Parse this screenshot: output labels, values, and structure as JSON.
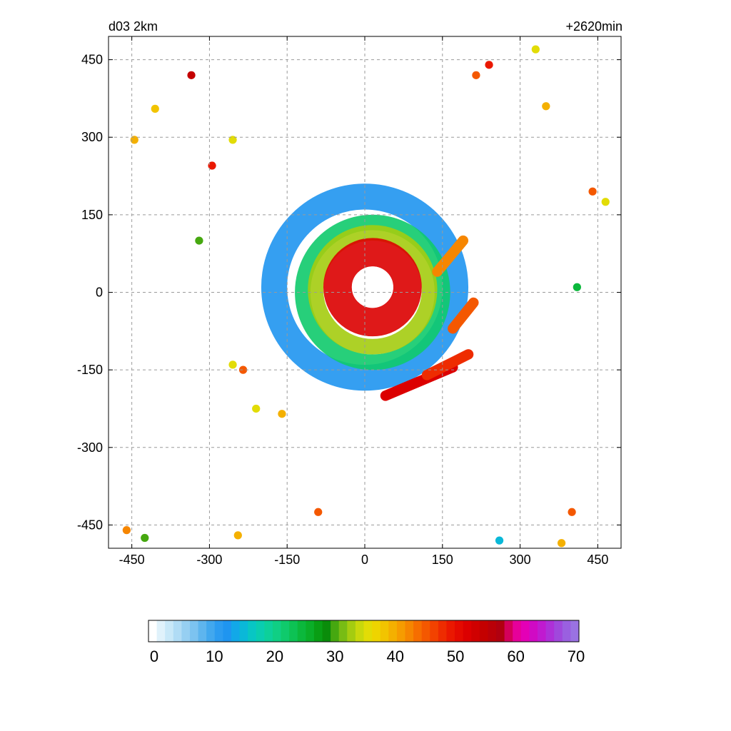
{
  "chart_data": {
    "type": "heatmap",
    "title_left": "d03 2km",
    "title_right": "+2620min",
    "xlabel": "",
    "ylabel": "",
    "xlim": [
      -495,
      495
    ],
    "ylim": [
      -495,
      495
    ],
    "x_ticks": [
      -450,
      -300,
      -150,
      0,
      150,
      300,
      450
    ],
    "y_ticks": [
      -450,
      -300,
      -150,
      0,
      150,
      300,
      450
    ],
    "grid": true,
    "colorbar": {
      "range": [
        0,
        70
      ],
      "ticks": [
        0,
        10,
        20,
        30,
        40,
        50,
        60,
        70
      ],
      "colors": [
        "#ffffff",
        "#e0f2fb",
        "#c8e8f8",
        "#b0dcf5",
        "#96cff2",
        "#7cc3f0",
        "#5eb5ee",
        "#42a8ee",
        "#2c9cf0",
        "#1f95f0",
        "#12a8e8",
        "#0ab8d8",
        "#08c6c4",
        "#0acdb0",
        "#0dd09a",
        "#10cf84",
        "#0fca6c",
        "#0dc254",
        "#0bb83c",
        "#0aae28",
        "#099e14",
        "#0a8c0a",
        "#46a810",
        "#78bc14",
        "#a4cc10",
        "#c8d80c",
        "#e2dc06",
        "#eed400",
        "#f2c400",
        "#f4b000",
        "#f69c00",
        "#f68600",
        "#f66e00",
        "#f45800",
        "#f24200",
        "#ee2c00",
        "#ea1800",
        "#e40a00",
        "#dc0000",
        "#d00000",
        "#c40000",
        "#ba0008",
        "#b00010",
        "#d4005a",
        "#e6009a",
        "#e400b6",
        "#d00ac4",
        "#c01ad0",
        "#ae30d8",
        "#a048dc",
        "#9a60e0",
        "#9a72e2"
      ]
    },
    "features": [
      {
        "type": "ring",
        "x": 15,
        "y": 10,
        "r_inner": 40,
        "r_outer": 95,
        "value": 52
      },
      {
        "type": "ring",
        "x": 15,
        "y": 5,
        "r_inner": 95,
        "r_outer": 125,
        "value": 33
      },
      {
        "type": "ring",
        "x": 15,
        "y": 0,
        "r_inner": 120,
        "r_outer": 150,
        "value": 22
      },
      {
        "type": "ring",
        "x": 0,
        "y": 10,
        "r_inner": 150,
        "r_outer": 200,
        "value": 12
      },
      {
        "type": "band",
        "x1": 40,
        "y1": -200,
        "x2": 170,
        "y2": -145,
        "value": 52
      },
      {
        "type": "band",
        "x1": 120,
        "y1": -160,
        "x2": 200,
        "y2": -120,
        "value": 48
      },
      {
        "type": "band",
        "x1": 170,
        "y1": -70,
        "x2": 210,
        "y2": -20,
        "value": 45
      },
      {
        "type": "band",
        "x1": 140,
        "y1": 40,
        "x2": 190,
        "y2": 100,
        "value": 42
      },
      {
        "type": "cell",
        "x": 240,
        "y": 440,
        "value": 50
      },
      {
        "type": "cell",
        "x": 215,
        "y": 420,
        "value": 45
      },
      {
        "type": "cell",
        "x": 330,
        "y": 470,
        "value": 35
      },
      {
        "type": "cell",
        "x": 350,
        "y": 360,
        "value": 40
      },
      {
        "type": "cell",
        "x": 440,
        "y": 195,
        "value": 45
      },
      {
        "type": "cell",
        "x": 465,
        "y": 175,
        "value": 35
      },
      {
        "type": "cell",
        "x": -405,
        "y": 355,
        "value": 38
      },
      {
        "type": "cell",
        "x": -445,
        "y": 295,
        "value": 40
      },
      {
        "type": "cell",
        "x": -335,
        "y": 420,
        "value": 55
      },
      {
        "type": "cell",
        "x": -295,
        "y": 245,
        "value": 50
      },
      {
        "type": "cell",
        "x": -255,
        "y": 295,
        "value": 35
      },
      {
        "type": "cell",
        "x": -235,
        "y": -150,
        "value": 45
      },
      {
        "type": "cell",
        "x": -255,
        "y": -140,
        "value": 35
      },
      {
        "type": "cell",
        "x": -160,
        "y": -235,
        "value": 40
      },
      {
        "type": "cell",
        "x": -210,
        "y": -225,
        "value": 35
      },
      {
        "type": "cell",
        "x": -90,
        "y": -425,
        "value": 45
      },
      {
        "type": "cell",
        "x": -245,
        "y": -470,
        "value": 40
      },
      {
        "type": "cell",
        "x": -460,
        "y": -460,
        "value": 42
      },
      {
        "type": "cell",
        "x": -425,
        "y": -475,
        "value": 30
      },
      {
        "type": "cell",
        "x": 400,
        "y": -425,
        "value": 45
      },
      {
        "type": "cell",
        "x": 260,
        "y": -480,
        "value": 15
      },
      {
        "type": "cell",
        "x": 380,
        "y": -485,
        "value": 40
      },
      {
        "type": "cell",
        "x": 410,
        "y": 10,
        "value": 25
      },
      {
        "type": "cell",
        "x": -320,
        "y": 100,
        "value": 30
      }
    ]
  }
}
